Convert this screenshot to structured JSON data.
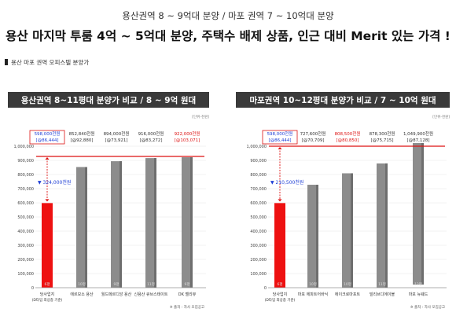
{
  "header": {
    "subtitle": "용산권역 8 ~ 9억대 분양 / 마포 권역 7 ~ 10억대 분양",
    "title": "용산 마지막 투룸 4억 ~ 5억대 분양, 주택수 배제 상품, 인근 대비 Merit 있는 가격 !"
  },
  "section_label": "용산 마포 권역 오피스텔 분양가",
  "colors": {
    "title_bar": "#3a3a3a",
    "bar_gray": "#8c8c8c",
    "bar_highlight": "#ee1111",
    "ref_line": "#dd1111",
    "blue": "#1f3fd6"
  },
  "chart_data": [
    {
      "type": "bar",
      "title": "용산권역 8~11평대 분양가 비교 /  8 ~ 9억 원대",
      "unit_note": "[단위-천원]",
      "ylim": [
        0,
        1000000
      ],
      "yticks": [
        "0",
        "100,000",
        "200,000",
        "300,000",
        "400,000",
        "500,000",
        "600,000",
        "700,000",
        "800,000",
        "900,000",
        "1,000,000"
      ],
      "categories": [
        {
          "name": "당사업지",
          "sub": "(D타입 최상층 기준)"
        },
        {
          "name": "에르모소 용산",
          "sub": ""
        },
        {
          "name": "월드메르디앙 용산",
          "sub": ""
        },
        {
          "name": "신용산 큐브스테이트",
          "sub": ""
        },
        {
          "name": "DK 벨리뷰",
          "sub": ""
        }
      ],
      "values": [
        598000,
        852840,
        894000,
        916000,
        922000
      ],
      "value_labels": [
        "598,000천원",
        "852,840천원",
        "894,000천원",
        "916,000천원",
        "922,000천원"
      ],
      "pyeong_labels": [
        "[@86,444]",
        "[@92,880]",
        "[@73,921]",
        "[@83,272]",
        "[@103,071]"
      ],
      "bar_inner_labels": [
        "6평",
        "10평",
        "9평",
        "11평",
        "9평"
      ],
      "highlight_index": 0,
      "red_label_indices": [
        4
      ],
      "reference_value": 922000,
      "diff_label": "▼ 324,000천원",
      "source": "※ 출처 : 자사 모집공고"
    },
    {
      "type": "bar",
      "title": "마포권역 10~12평대 분양가 비교 /  7 ~ 10억 원대",
      "unit_note": "[단위-천원]",
      "ylim": [
        0,
        1000000
      ],
      "yticks": [
        "0",
        "100,000",
        "200,000",
        "300,000",
        "400,000",
        "500,000",
        "600,000",
        "700,000",
        "800,000",
        "900,000",
        "1,000,000"
      ],
      "categories": [
        {
          "name": "당사업지",
          "sub": "(D타입 최상층 기준)"
        },
        {
          "name": "마포 에피트어바닉",
          "sub": ""
        },
        {
          "name": "에이크로마포트",
          "sub": ""
        },
        {
          "name": "빌리브디에이블",
          "sub": ""
        },
        {
          "name": "마포 뉴웨드",
          "sub": ""
        }
      ],
      "values": [
        598000,
        727600,
        808500,
        878300,
        1049900
      ],
      "value_labels": [
        "598,000천원",
        "727,600천원",
        "808,500천원",
        "878,300천원",
        "1,049,900천원"
      ],
      "pyeong_labels": [
        "[@86,444]",
        "[@70,709]",
        "[@80,850]",
        "[@75,715]",
        "[@87,128]"
      ],
      "bar_inner_labels": [
        "6평",
        "10평",
        "10평",
        "11평",
        "12평"
      ],
      "highlight_index": 0,
      "red_label_indices": [
        2
      ],
      "reference_value": 808500,
      "diff_label": "▼ 210,500천원",
      "source": "※ 출처 : 자사 모집공고"
    }
  ]
}
